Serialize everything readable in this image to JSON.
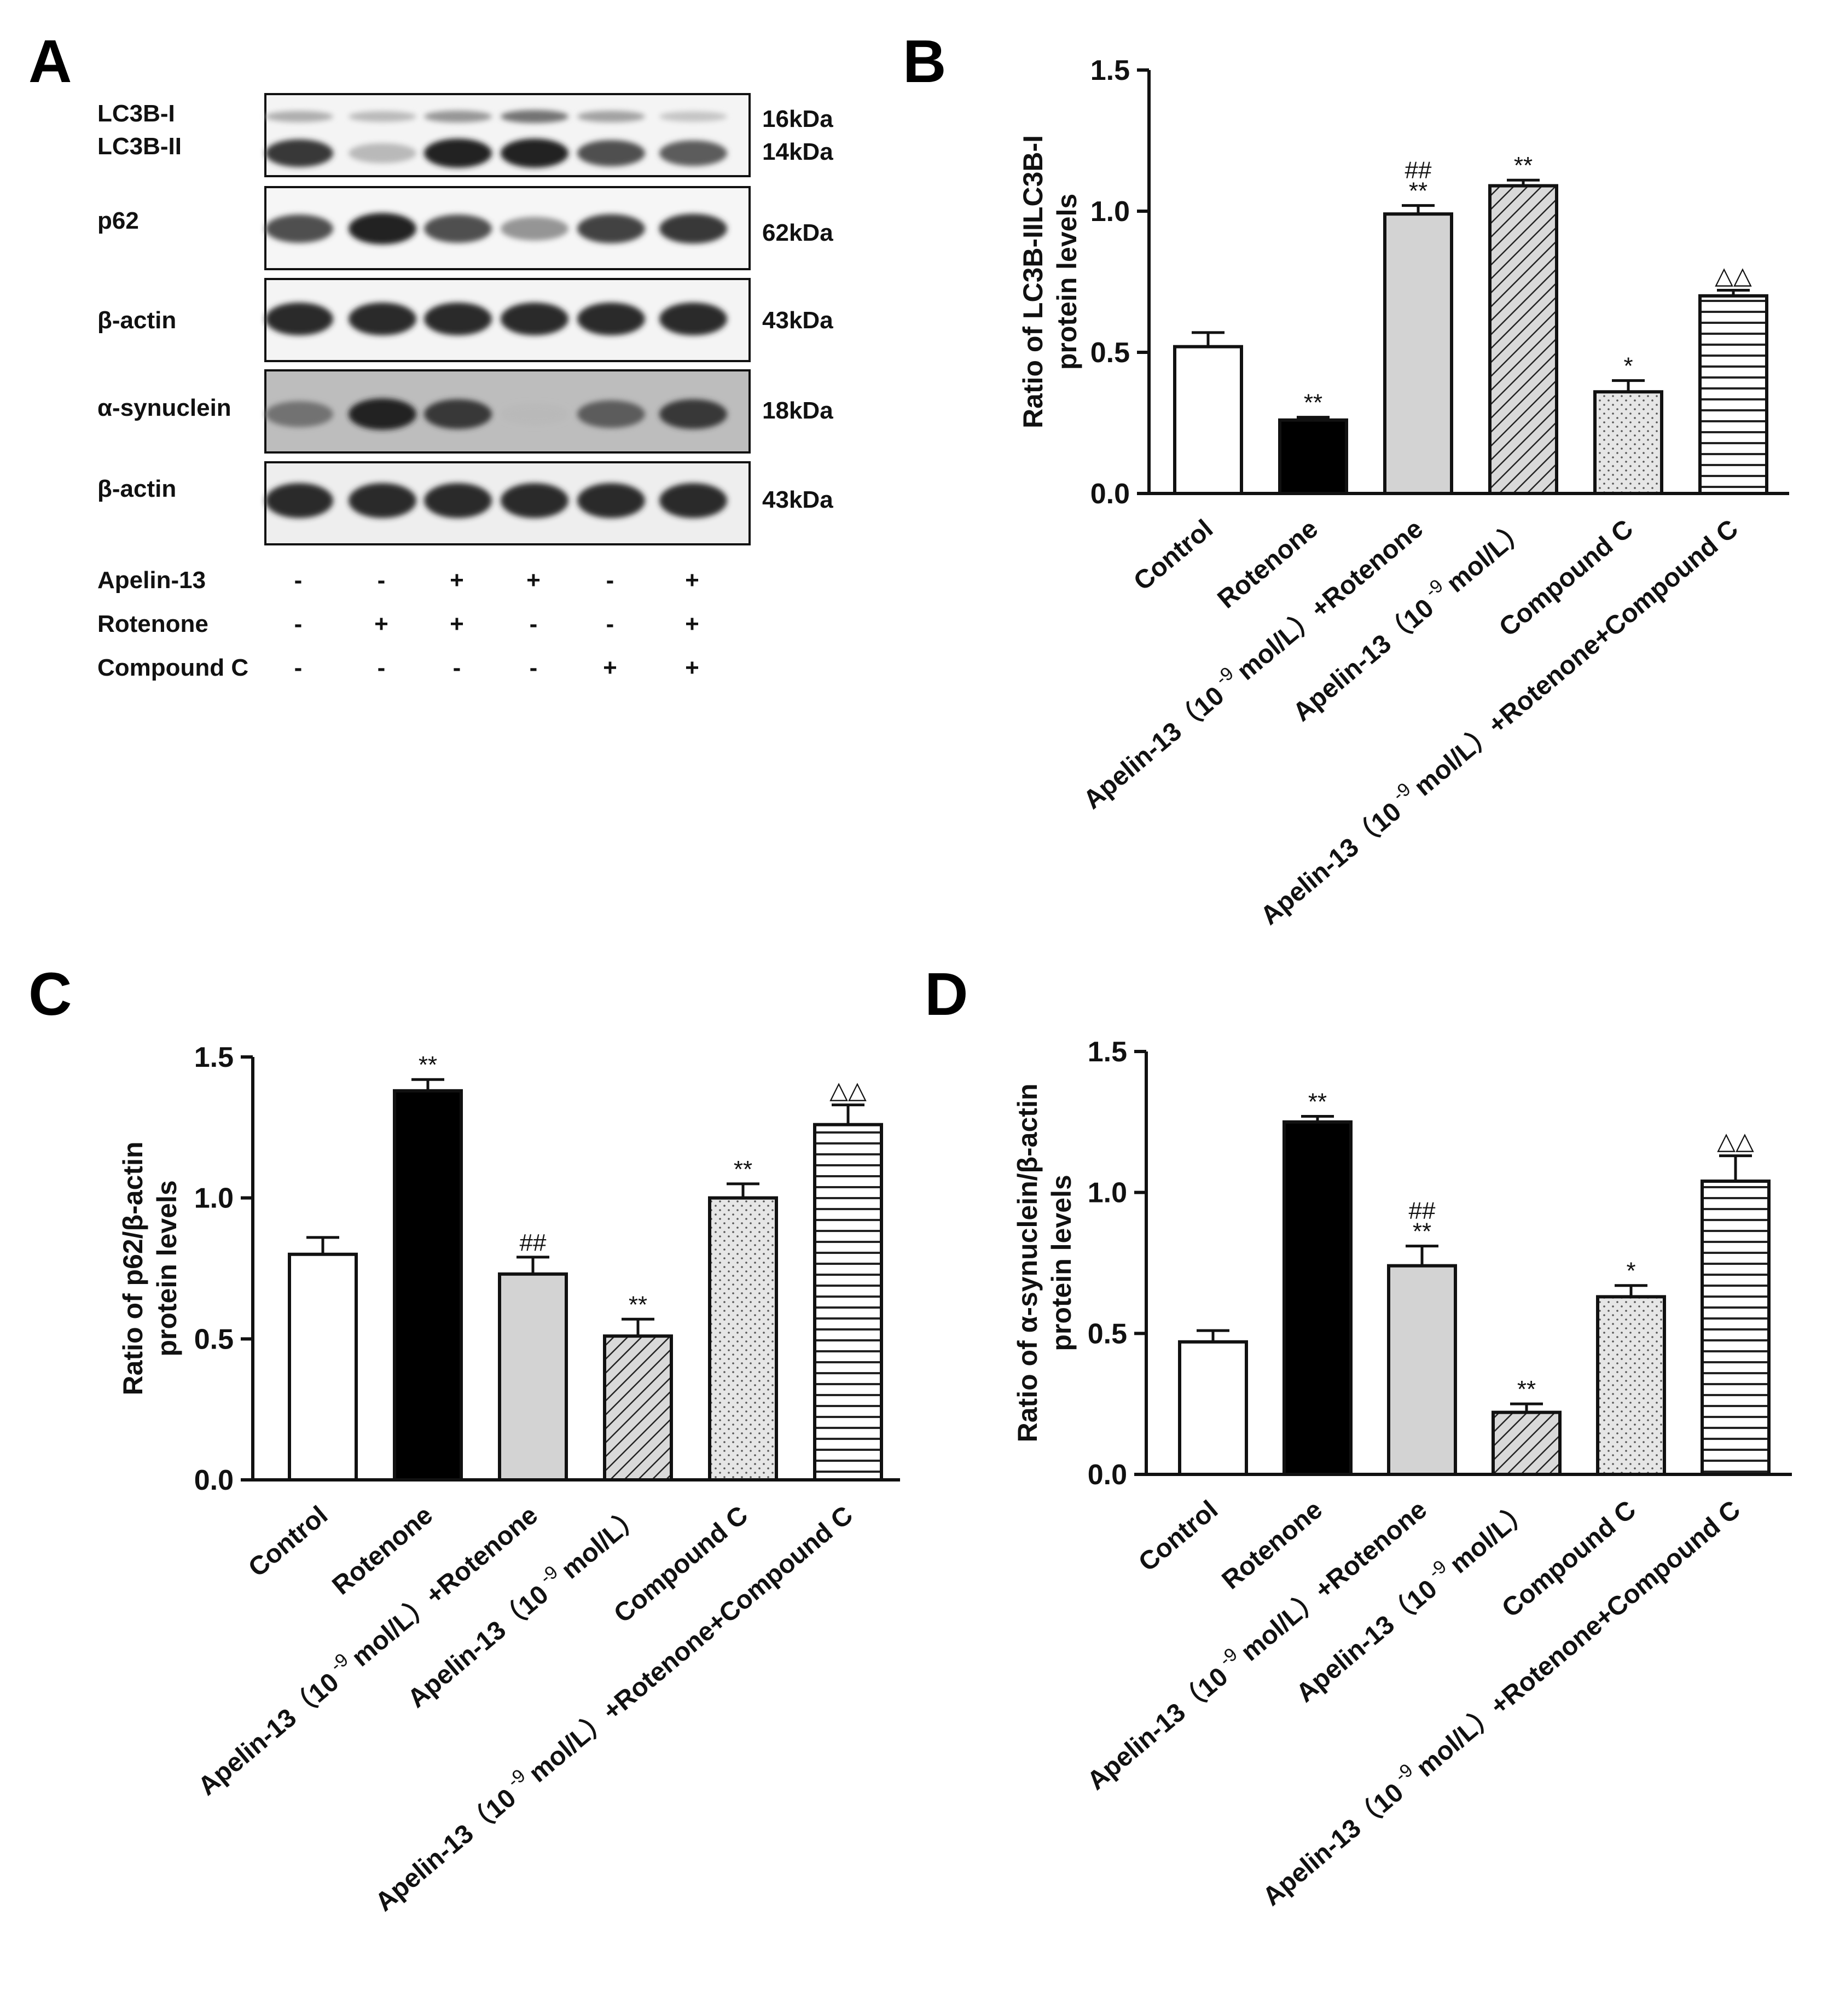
{
  "colors": {
    "fill_control": "#ffffff",
    "fill_rotenone": "#000000",
    "fill_combo": "#d3d3d3",
    "fill_apelin": "#d9d9d9",
    "fill_compound": "#e6e6e6",
    "fill_triple": "#ffffff",
    "stroke": "#111111"
  },
  "panel_a": {
    "letter": "A",
    "rows": [
      {
        "labels": [
          "LC3B-I",
          "LC3B-II"
        ],
        "kda": [
          "16kDa",
          "14kDa"
        ],
        "bg": "#f4f4f4"
      },
      {
        "labels": [
          "p62"
        ],
        "kda": [
          "62kDa"
        ],
        "bg": "#f6f6f6"
      },
      {
        "labels": [
          "β-actin"
        ],
        "kda": [
          "43kDa"
        ],
        "bg": "#f4f4f4"
      },
      {
        "labels": [
          "α-synuclein"
        ],
        "kda": [
          "18kDa"
        ],
        "bg": "#bdbdbd"
      },
      {
        "labels": [
          "β-actin"
        ],
        "kda": [
          "43kDa"
        ],
        "bg": "#eeeeee"
      }
    ],
    "band_intensity": {
      "lc3b_i": [
        0.35,
        0.3,
        0.45,
        0.6,
        0.4,
        0.25
      ],
      "lc3b_ii": [
        0.85,
        0.3,
        0.95,
        0.95,
        0.75,
        0.7
      ],
      "p62": [
        0.75,
        0.95,
        0.75,
        0.45,
        0.8,
        0.85
      ],
      "actin1": [
        0.9,
        0.9,
        0.9,
        0.9,
        0.9,
        0.9
      ],
      "asyn": [
        0.6,
        0.95,
        0.85,
        0.3,
        0.7,
        0.85
      ],
      "actin2": [
        0.9,
        0.9,
        0.9,
        0.9,
        0.9,
        0.9
      ]
    },
    "treatment_table": [
      {
        "name": "Apelin-13",
        "signs": [
          "-",
          "-",
          "+",
          "+",
          "-",
          "+"
        ]
      },
      {
        "name": "Rotenone",
        "signs": [
          "-",
          "+",
          "+",
          "-",
          "-",
          "+"
        ]
      },
      {
        "name": "Compound C",
        "signs": [
          "-",
          "-",
          "-",
          "-",
          "+",
          "+"
        ]
      }
    ]
  },
  "chart_data": [
    {
      "panel": "B",
      "type": "bar",
      "ylabel_line1": "Ratio of LC3B-IILC3B-I",
      "ylabel_line2": "protein levels",
      "ylim": [
        0,
        1.5
      ],
      "yticks": [
        "0.0",
        "0.5",
        "1.0",
        "1.5"
      ],
      "categories": [
        {
          "pre": "Control",
          "post": ""
        },
        {
          "pre": "Rotenone",
          "post": ""
        },
        {
          "pre": "Apelin-13（10",
          "post": "mol/L）+Rotenone"
        },
        {
          "pre": "Apelin-13（10",
          "post": "mol/L）"
        },
        {
          "pre": "Compound C",
          "post": ""
        },
        {
          "pre": "Apelin-13（10",
          "post": "mol/L）+Rotenone+Compound C"
        }
      ],
      "superscript": "-9",
      "values": [
        0.52,
        0.26,
        0.99,
        1.09,
        0.36,
        0.7
      ],
      "errors": [
        0.05,
        0.01,
        0.03,
        0.02,
        0.04,
        0.02
      ],
      "annotations": [
        [],
        [
          "**"
        ],
        [
          "**",
          "##"
        ],
        [
          "**"
        ],
        [
          "*"
        ],
        [
          "△△"
        ]
      ]
    },
    {
      "panel": "C",
      "type": "bar",
      "ylabel_line1": "Ratio of p62/β-actin",
      "ylabel_line2": "protein levels",
      "ylim": [
        0,
        1.5
      ],
      "yticks": [
        "0.0",
        "0.5",
        "1.0",
        "1.5"
      ],
      "categories": [
        {
          "pre": "Control",
          "post": ""
        },
        {
          "pre": "Rotenone",
          "post": ""
        },
        {
          "pre": "Apelin-13（10",
          "post": "mol/L）+Rotenone"
        },
        {
          "pre": "Apelin-13（10",
          "post": "mol/L）"
        },
        {
          "pre": "Compound C",
          "post": ""
        },
        {
          "pre": "Apelin-13（10",
          "post": "mol/L）+Rotenone+Compound C"
        }
      ],
      "superscript": "-9",
      "values": [
        0.8,
        1.38,
        0.73,
        0.51,
        1.0,
        1.26
      ],
      "errors": [
        0.06,
        0.04,
        0.06,
        0.06,
        0.05,
        0.07
      ],
      "annotations": [
        [],
        [
          "**"
        ],
        [
          "##"
        ],
        [
          "**"
        ],
        [
          "**"
        ],
        [
          "△△"
        ]
      ]
    },
    {
      "panel": "D",
      "type": "bar",
      "ylabel_line1": "Ratio of α-synuclein/β-actin",
      "ylabel_line2": "protein levels",
      "ylim": [
        0,
        1.5
      ],
      "yticks": [
        "0.0",
        "0.5",
        "1.0",
        "1.5"
      ],
      "categories": [
        {
          "pre": "Control",
          "post": ""
        },
        {
          "pre": "Rotenone",
          "post": ""
        },
        {
          "pre": "Apelin-13（10",
          "post": "mol/L）+Rotenone"
        },
        {
          "pre": "Apelin-13（10",
          "post": "mol/L）"
        },
        {
          "pre": "Compound C",
          "post": ""
        },
        {
          "pre": "Apelin-13（10",
          "post": "mol/L）+Rotenone+Compound C"
        }
      ],
      "superscript": "-9",
      "values": [
        0.47,
        1.25,
        0.74,
        0.22,
        0.63,
        1.04
      ],
      "errors": [
        0.04,
        0.02,
        0.07,
        0.03,
        0.04,
        0.09
      ],
      "annotations": [
        [],
        [
          "**"
        ],
        [
          "**",
          "##"
        ],
        [
          "**"
        ],
        [
          "*"
        ],
        [
          "△△"
        ]
      ]
    }
  ]
}
